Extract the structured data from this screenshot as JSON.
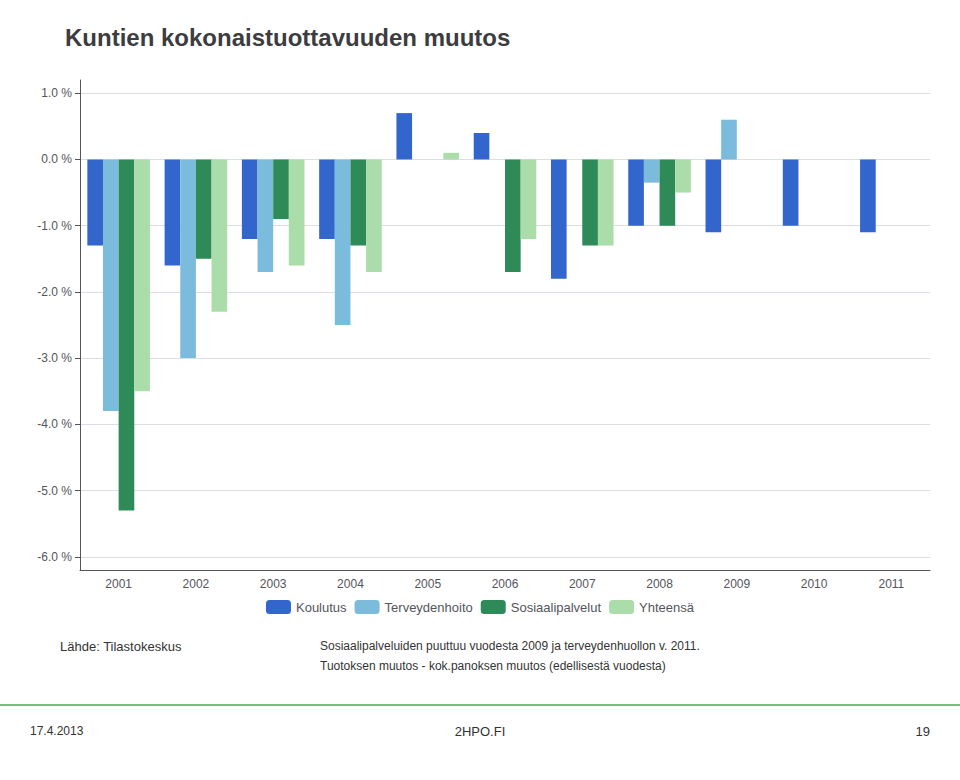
{
  "chart_data": {
    "type": "bar",
    "title": "Kuntien kokonaistuottavuuden muutos",
    "categories": [
      2001,
      2002,
      2003,
      2004,
      2005,
      2006,
      2007,
      2008,
      2009,
      2010,
      2011
    ],
    "series": [
      {
        "name": "Koulutus",
        "color": "#3366CC",
        "values": [
          -1.3,
          -1.6,
          -1.2,
          -1.2,
          0.7,
          0.4,
          -1.8,
          -1.0,
          -1.1,
          -1.0,
          -1.1
        ]
      },
      {
        "name": "Terveydenhoito",
        "color": "#7BBCDD",
        "values": [
          -3.8,
          -3.0,
          -1.7,
          -2.5,
          null,
          null,
          null,
          -0.35,
          0.6,
          null,
          null
        ]
      },
      {
        "name": "Sosiaalipalvelut",
        "color": "#2E8B57",
        "values": [
          -5.3,
          -1.5,
          -0.9,
          -1.3,
          null,
          -1.7,
          -1.3,
          -1.0,
          null,
          null,
          null
        ]
      },
      {
        "name": "Yhteensä",
        "color": "#AADDAA",
        "values": [
          -3.5,
          -2.3,
          -1.6,
          -1.7,
          0.1,
          -1.2,
          -1.3,
          -0.5,
          null,
          null,
          null
        ]
      }
    ],
    "ylim": [
      -6.2,
      1.2
    ],
    "yticks": [
      {
        "value": 1.0,
        "label": "1.0 %"
      },
      {
        "value": 0.0,
        "label": "0.0 %"
      },
      {
        "value": -1.0,
        "label": "-1.0 %"
      },
      {
        "value": -2.0,
        "label": "-2.0 %"
      },
      {
        "value": -3.0,
        "label": "-3.0 %"
      },
      {
        "value": -4.0,
        "label": "-4.0 %"
      },
      {
        "value": -5.0,
        "label": "-5.0 %"
      },
      {
        "value": -6.0,
        "label": "-6.0 %"
      }
    ],
    "grid": true,
    "legend": "bottom",
    "annotations": [
      "Lähde: Tilastokeskus",
      "Sosiaalipalveluiden puuttuu vuodesta 2009 ja terveydenhuollon v. 2011.",
      "Tuotoksen muutos - kok.panoksen muutos (edellisestä vuodesta)",
      "17.4.2013",
      "2HPO.FI",
      "19"
    ]
  }
}
